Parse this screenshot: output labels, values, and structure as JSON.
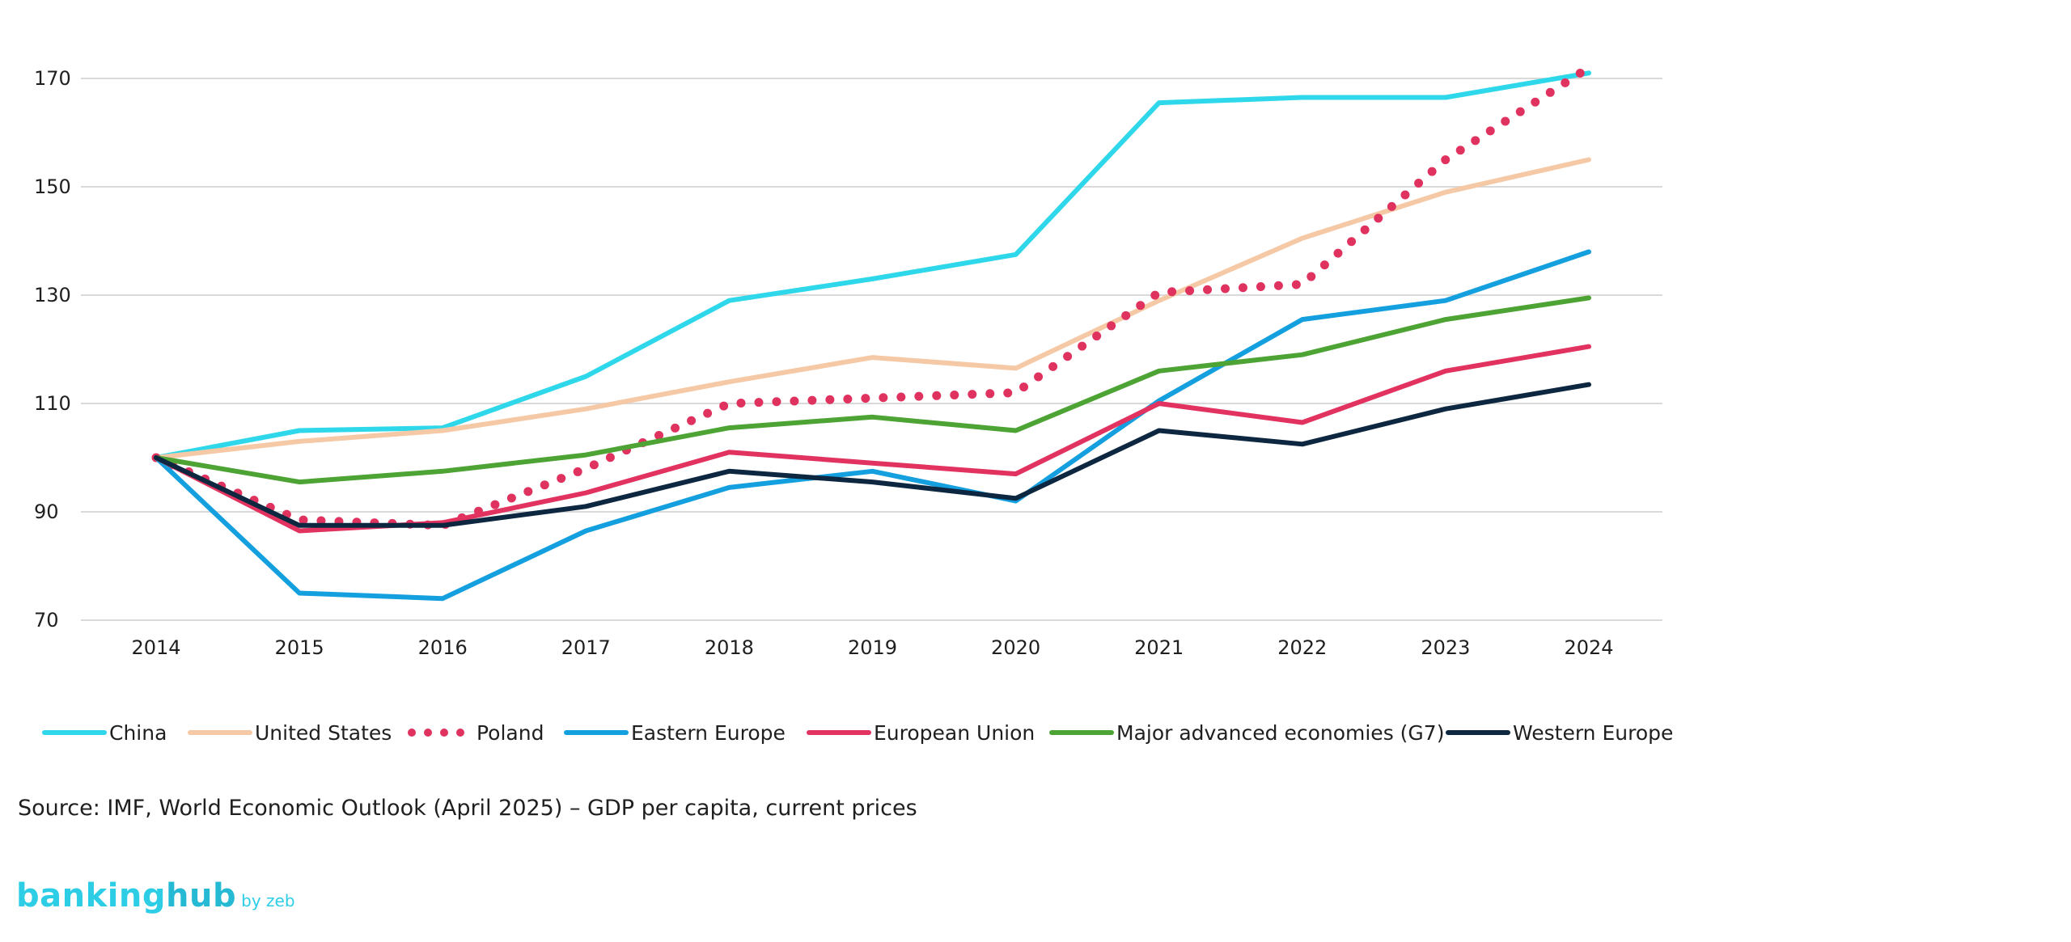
{
  "chart_data": {
    "type": "line",
    "title": "",
    "xlabel": "",
    "ylabel": "",
    "x": [
      "2014",
      "2015",
      "2016",
      "2017",
      "2018",
      "2019",
      "2020",
      "2021",
      "2022",
      "2023",
      "2024"
    ],
    "yticks": [
      "70",
      "90",
      "110",
      "130",
      "150",
      "170"
    ],
    "ylim": [
      70,
      175
    ],
    "grid": "horizontal",
    "legend_position": "bottom",
    "series": [
      {
        "name": "China",
        "color": "#2ed8ea",
        "style": "solid",
        "values": [
          100,
          105,
          105.5,
          115,
          129,
          133,
          137.5,
          165.5,
          166.5,
          166.5,
          171
        ]
      },
      {
        "name": "United States",
        "color": "#f6c9a6",
        "style": "solid",
        "values": [
          100,
          103,
          105,
          109,
          114,
          118.5,
          116.5,
          129,
          140.5,
          149,
          155
        ]
      },
      {
        "name": "Poland",
        "color": "#e0325f",
        "style": "dotted",
        "values": [
          100,
          88.5,
          87.5,
          98,
          110,
          111,
          112,
          130.5,
          132,
          155,
          172
        ]
      },
      {
        "name": "Eastern Europe",
        "color": "#149fdf",
        "style": "solid",
        "values": [
          100,
          75,
          74,
          86.5,
          94.5,
          97.5,
          92,
          110.5,
          125.5,
          129,
          138
        ]
      },
      {
        "name": "European Union",
        "color": "#e2325f",
        "style": "solid",
        "values": [
          100,
          86.5,
          88,
          93.5,
          101,
          99,
          97,
          110,
          106.5,
          116,
          120.5
        ]
      },
      {
        "name": "Major advanced economies (G7)",
        "color": "#4da434",
        "style": "solid",
        "values": [
          100,
          95.5,
          97.5,
          100.5,
          105.5,
          107.5,
          105,
          116,
          119,
          125.5,
          129.5
        ]
      },
      {
        "name": "Western Europe",
        "color": "#0d2741",
        "style": "solid",
        "values": [
          100,
          87.5,
          87.5,
          91,
          97.5,
          95.5,
          92.5,
          105,
          102.5,
          109,
          113.5
        ]
      }
    ]
  },
  "footer": {
    "source": "Source: IMF, World Economic Outlook (April 2025) – GDP per capita, current prices"
  },
  "logo": {
    "banking": "banking",
    "hub": "hub",
    "byline": "by zeb"
  }
}
